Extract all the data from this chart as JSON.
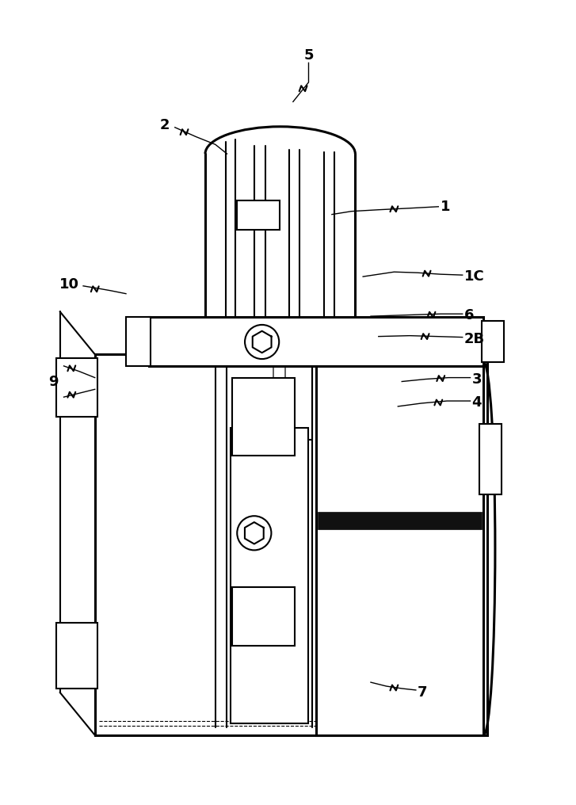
{
  "bg_color": "#ffffff",
  "line_color": "#000000",
  "lw_thin": 0.8,
  "lw_med": 1.5,
  "lw_thick": 2.2,
  "fig_width": 7.27,
  "fig_height": 10.16
}
